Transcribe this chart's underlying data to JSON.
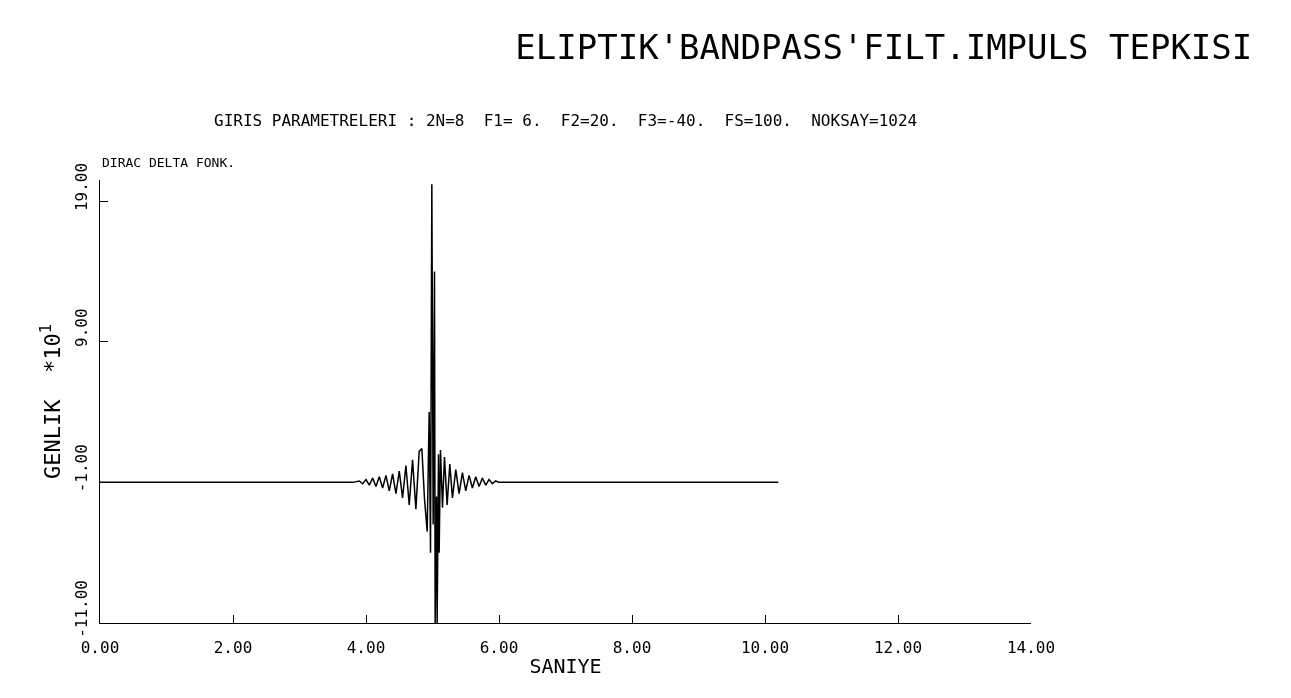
{
  "chart_data": {
    "type": "line",
    "title": "ELIPTIK'BANDPASS'FILT.IMPULS TEPKISI",
    "subtitle": "GIRIS PARAMETRELERI : 2N=8  F1= 6.  F2=20.  F3=-40.  FS=100.  NOKSAY=1024",
    "annotations": [
      "DIRAC DELTA FONK."
    ],
    "xlabel": "SANIYE",
    "ylabel": "GENLIK  *10$^{1}$",
    "x": [
      0,
      3.8,
      3.9,
      3.95,
      4.0,
      4.05,
      4.1,
      4.15,
      4.2,
      4.25,
      4.3,
      4.35,
      4.4,
      4.45,
      4.5,
      4.55,
      4.6,
      4.65,
      4.7,
      4.75,
      4.8,
      4.84,
      4.88,
      4.92,
      4.95,
      4.97,
      4.99,
      5.01,
      5.03,
      5.04,
      5.06,
      5.07,
      5.09,
      5.1,
      5.12,
      5.15,
      5.18,
      5.22,
      5.26,
      5.3,
      5.35,
      5.4,
      5.45,
      5.5,
      5.55,
      5.6,
      5.65,
      5.7,
      5.75,
      5.8,
      5.85,
      5.9,
      5.95,
      6.0,
      6.1,
      10.2
    ],
    "series": [
      {
        "color": "#000000",
        "values": [
          -1,
          -1,
          -0.9,
          -1.1,
          -0.8,
          -1.2,
          -0.7,
          -1.3,
          -0.6,
          -1.4,
          -0.5,
          -1.6,
          -0.4,
          -1.8,
          -0.2,
          -2.1,
          0.2,
          -2.6,
          0.6,
          -2.9,
          1.2,
          1.4,
          -2.2,
          -4.5,
          4,
          -6,
          20.2,
          -4,
          14,
          -11,
          -2,
          -11,
          1,
          -6,
          1.3,
          -2.8,
          0.8,
          -2.6,
          0.3,
          -2.1,
          -0.1,
          -1.8,
          -0.3,
          -1.6,
          -0.5,
          -1.4,
          -0.6,
          -1.3,
          -0.7,
          -1.2,
          -0.8,
          -1.1,
          -0.9,
          -1,
          -1,
          -1
        ]
      }
    ],
    "xlim": [
      0,
      14
    ],
    "xticks": [
      {
        "value": 0,
        "label": "0.00"
      },
      {
        "value": 2,
        "label": "2.00"
      },
      {
        "value": 4,
        "label": "4.00"
      },
      {
        "value": 6,
        "label": "6.00"
      },
      {
        "value": 8,
        "label": "8.00"
      },
      {
        "value": 10,
        "label": "10.00"
      },
      {
        "value": 12,
        "label": "12.00"
      },
      {
        "value": 14,
        "label": "14.00"
      }
    ],
    "ylim": [
      -11,
      20.5
    ],
    "yticks": [
      {
        "value": -11,
        "label": "-11.00"
      },
      {
        "value": -1,
        "label": "-1.00"
      },
      {
        "value": 9,
        "label": "9.00"
      },
      {
        "value": 19,
        "label": "19.00"
      }
    ],
    "marker": "none",
    "line_style": "solid"
  }
}
